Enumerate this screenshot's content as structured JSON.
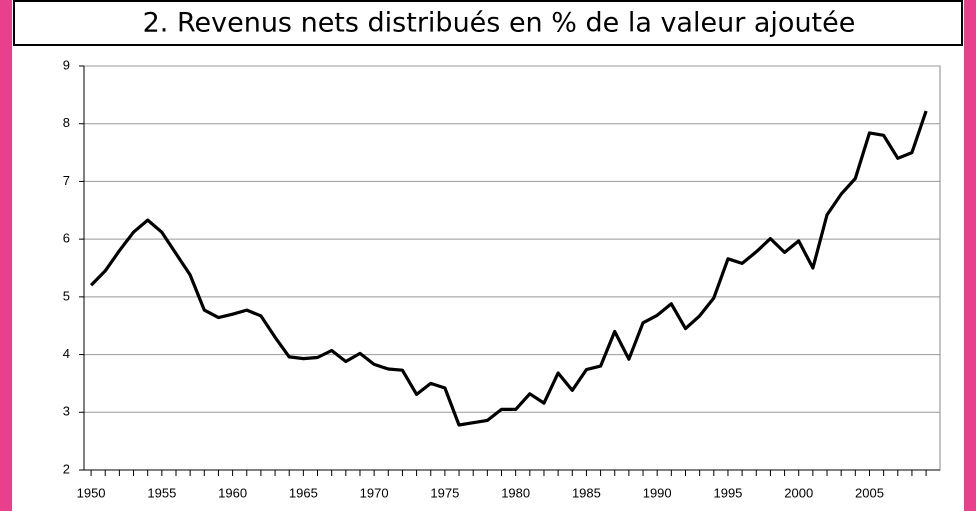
{
  "chart_data": {
    "type": "line",
    "title": "2. Revenus nets distribués en % de la valeur ajoutée",
    "x": [
      1950,
      1951,
      1952,
      1953,
      1954,
      1955,
      1956,
      1957,
      1958,
      1959,
      1960,
      1961,
      1962,
      1963,
      1964,
      1965,
      1966,
      1967,
      1968,
      1969,
      1970,
      1971,
      1972,
      1973,
      1974,
      1975,
      1976,
      1977,
      1978,
      1979,
      1980,
      1981,
      1982,
      1983,
      1984,
      1985,
      1986,
      1987,
      1988,
      1989,
      1990,
      1991,
      1992,
      1993,
      1994,
      1995,
      1996,
      1997,
      1998,
      1999,
      2000,
      2001,
      2002,
      2003,
      2004,
      2005,
      2006,
      2007,
      2008,
      2009
    ],
    "values": [
      5.2,
      5.45,
      5.8,
      6.12,
      6.33,
      6.12,
      5.75,
      5.38,
      4.77,
      4.64,
      4.7,
      4.77,
      4.67,
      4.3,
      3.96,
      3.93,
      3.95,
      4.07,
      3.88,
      4.02,
      3.83,
      3.75,
      3.73,
      3.31,
      3.5,
      3.42,
      2.78,
      2.82,
      2.86,
      3.05,
      3.05,
      3.32,
      3.16,
      3.68,
      3.38,
      3.74,
      3.8,
      4.4,
      3.92,
      4.55,
      4.68,
      4.88,
      4.45,
      4.67,
      4.98,
      5.66,
      5.58,
      5.78,
      6.01,
      5.77,
      5.97,
      5.5,
      6.42,
      6.78,
      7.05,
      7.84,
      7.8,
      7.4,
      7.5,
      8.22
    ],
    "color": "#000000",
    "xlim": [
      1949.5,
      2009.7
    ],
    "xticks": [
      1950,
      1955,
      1960,
      1965,
      1970,
      1975,
      1980,
      1985,
      1990,
      1995,
      2000,
      2005
    ],
    "ylim": [
      2,
      9
    ],
    "yticks": [
      2,
      3,
      4,
      5,
      6,
      7,
      8,
      9
    ],
    "grid": true
  }
}
